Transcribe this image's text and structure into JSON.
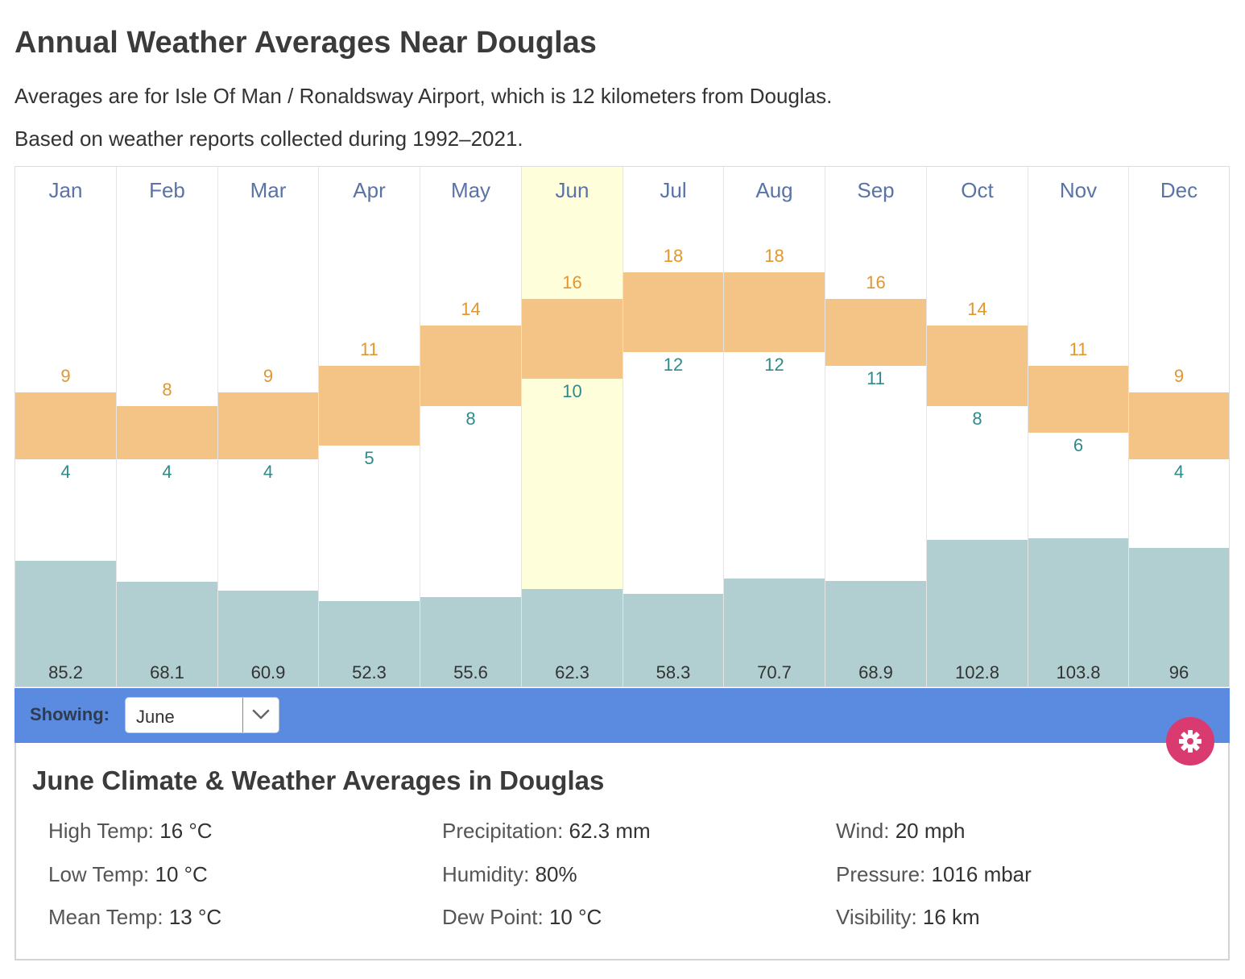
{
  "title": "Annual Weather Averages Near Douglas",
  "intro": [
    "Averages are for Isle Of Man / Ronaldsway Airport, which is 12 kilometers from Douglas.",
    "Based on weather reports collected during 1992–2021."
  ],
  "chart_data": {
    "type": "bar",
    "categories": [
      "Jan",
      "Feb",
      "Mar",
      "Apr",
      "May",
      "Jun",
      "Jul",
      "Aug",
      "Sep",
      "Oct",
      "Nov",
      "Dec"
    ],
    "selected_index": 5,
    "series": [
      {
        "name": "High Temp (°C)",
        "values": [
          9,
          8,
          9,
          11,
          14,
          16,
          18,
          18,
          16,
          14,
          11,
          9
        ]
      },
      {
        "name": "Low Temp (°C)",
        "values": [
          4,
          4,
          4,
          5,
          8,
          10,
          12,
          12,
          11,
          8,
          6,
          4
        ]
      },
      {
        "name": "Precipitation (mm)",
        "values": [
          85.2,
          68.1,
          60.9,
          52.3,
          55.6,
          62.3,
          58.3,
          70.7,
          68.9,
          102.8,
          103.8,
          96
        ]
      }
    ],
    "colors": {
      "temp_range": "#f4c487",
      "high": "#e3952e",
      "low": "#2f8a8a",
      "precip": "#b1cfd1",
      "selected": "#fefedb",
      "month_label": "#5a73a6"
    }
  },
  "controls": {
    "showing_label": "Showing:",
    "selected_month": "June",
    "bar_color": "#5b8be0",
    "gear_color": "#d93a70"
  },
  "detail": {
    "title": "June Climate & Weather Averages in Douglas",
    "stats": [
      {
        "label": "High Temp:",
        "value": "16 °C"
      },
      {
        "label": "Low Temp:",
        "value": "10 °C"
      },
      {
        "label": "Mean Temp:",
        "value": "13 °C"
      },
      {
        "label": "Precipitation:",
        "value": "62.3 mm"
      },
      {
        "label": "Humidity:",
        "value": "80%"
      },
      {
        "label": "Dew Point:",
        "value": "10 °C"
      },
      {
        "label": "Wind:",
        "value": "20 mph"
      },
      {
        "label": "Pressure:",
        "value": "1016 mbar"
      },
      {
        "label": "Visibility:",
        "value": "16 km"
      }
    ]
  }
}
